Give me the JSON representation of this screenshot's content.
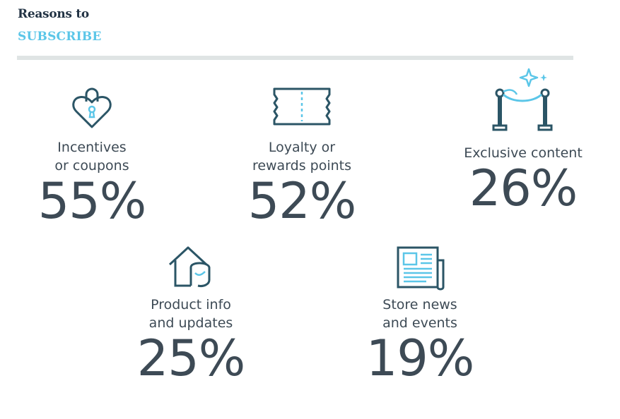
{
  "header": {
    "line1": "Reasons to",
    "line2": "SUBSCRIBE"
  },
  "colors": {
    "dark": "#2b5566",
    "accent": "#5bc6e8",
    "text": "#3d4a55",
    "rule": "#dfe4e4"
  },
  "chart_data": {
    "type": "table",
    "title": "Reasons to SUBSCRIBE",
    "categories": [
      "Incentives or coupons",
      "Loyalty or rewards points",
      "Exclusive content",
      "Product info and updates",
      "Store news and events"
    ],
    "values": [
      55,
      52,
      26,
      25,
      19
    ],
    "unit": "%"
  },
  "items": [
    {
      "label": "Incentives\nor coupons",
      "value": "55%",
      "icon": "heart-lock-icon"
    },
    {
      "label": "Loyalty or\nrewards points",
      "value": "52%",
      "icon": "ticket-icon"
    },
    {
      "label": "Exclusive content",
      "value": "26%",
      "icon": "velvet-rope-icon"
    },
    {
      "label": "Product info\nand updates",
      "value": "25%",
      "icon": "house-arrow-icon"
    },
    {
      "label": "Store news\nand events",
      "value": "19%",
      "icon": "newspaper-icon"
    }
  ]
}
